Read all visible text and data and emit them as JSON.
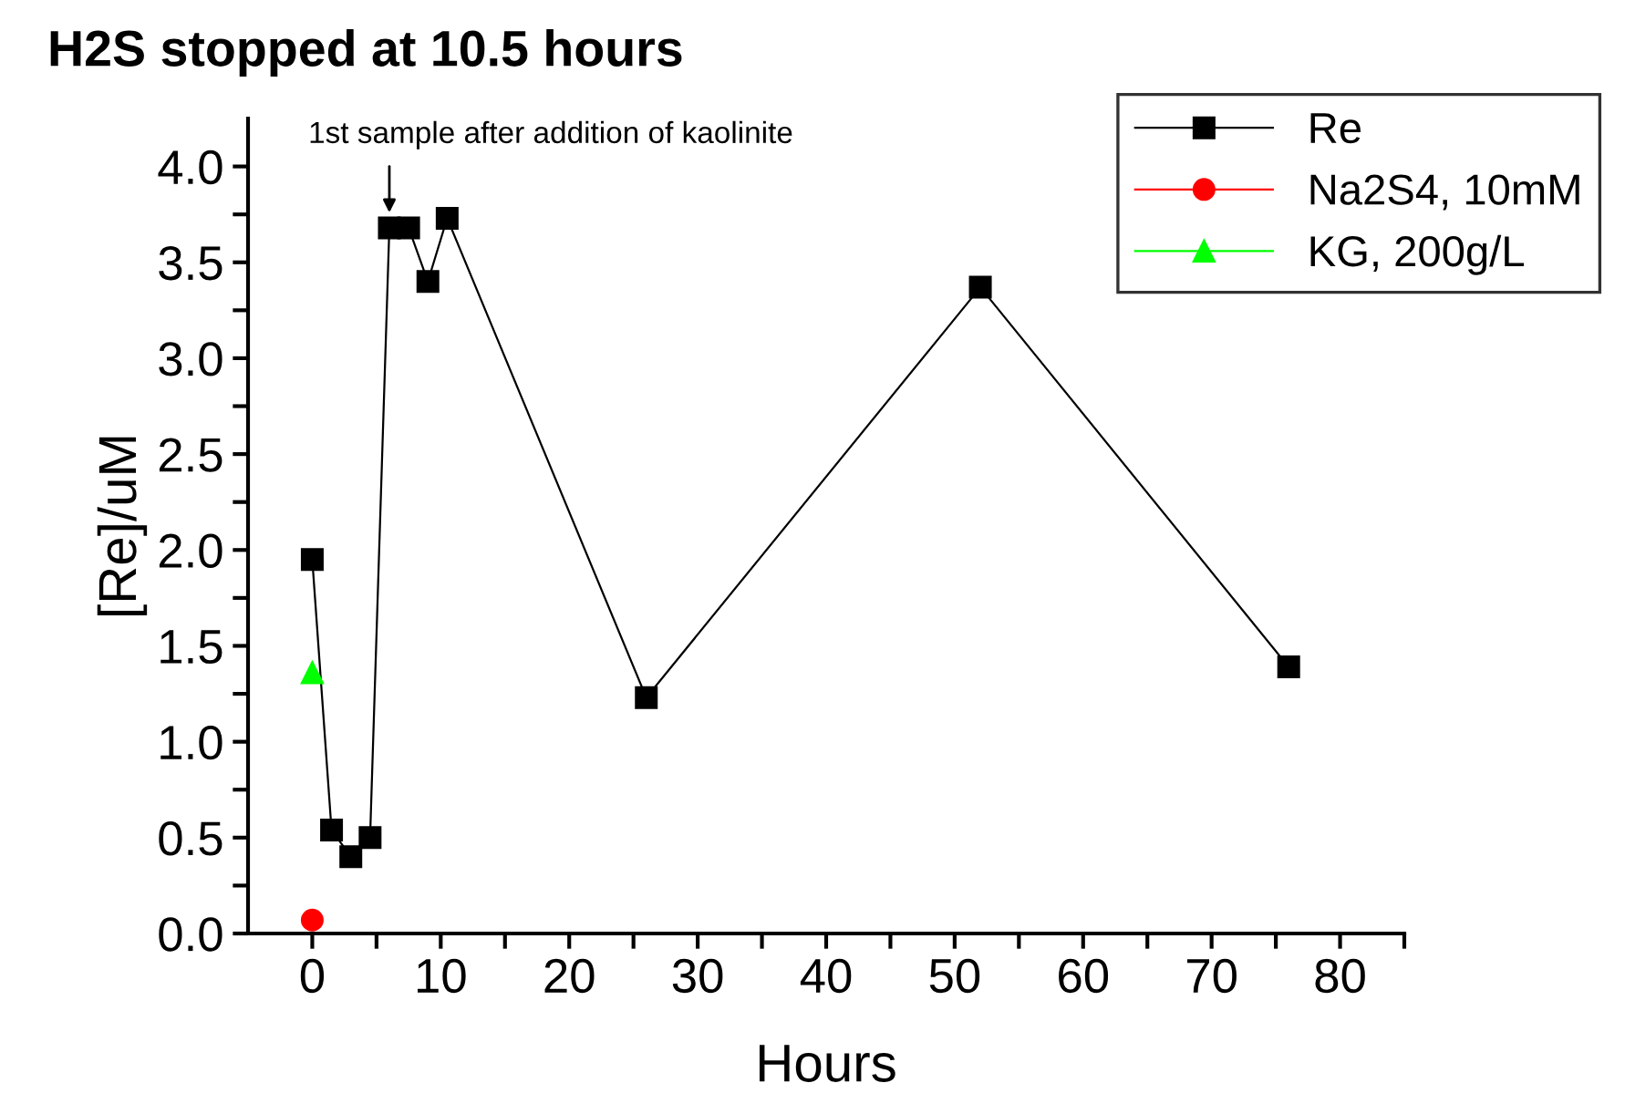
{
  "chart_data": {
    "type": "line",
    "title": "H2S stopped at 10.5 hours",
    "xlabel": "Hours",
    "ylabel": "[Re]/uM",
    "xlim": [
      -5,
      85
    ],
    "ylim": [
      0,
      4.25
    ],
    "xticks": [
      0,
      {
        "value": 5,
        "label": null
      },
      10,
      {
        "value": 15,
        "label": null
      },
      20,
      {
        "value": 25,
        "label": null
      },
      30,
      {
        "value": 35,
        "label": null
      },
      40,
      {
        "value": 45,
        "label": null
      },
      50,
      {
        "value": 55,
        "label": null
      },
      60,
      {
        "value": 65,
        "label": null
      },
      70,
      {
        "value": 75,
        "label": null
      },
      80,
      {
        "value": 85,
        "label": null
      }
    ],
    "yticks": [
      {
        "value": 0,
        "label": "0.0"
      },
      {
        "value": 0.25,
        "label": null
      },
      {
        "value": 0.5,
        "label": "0.5"
      },
      {
        "value": 0.75,
        "label": null
      },
      {
        "value": 1,
        "label": "1.0"
      },
      {
        "value": 1.25,
        "label": null
      },
      {
        "value": 1.5,
        "label": "1.5"
      },
      {
        "value": 1.75,
        "label": null
      },
      {
        "value": 2,
        "label": "2.0"
      },
      {
        "value": 2.25,
        "label": null
      },
      {
        "value": 2.5,
        "label": "2.5"
      },
      {
        "value": 2.75,
        "label": null
      },
      {
        "value": 3,
        "label": "3.0"
      },
      {
        "value": 3.25,
        "label": null
      },
      {
        "value": 3.5,
        "label": "3.5"
      },
      {
        "value": 3.75,
        "label": null
      },
      {
        "value": 4,
        "label": "4.0"
      }
    ],
    "series": [
      {
        "name": "Re",
        "color": "#000000",
        "marker": "square",
        "x": [
          0,
          1.5,
          3,
          4.5,
          6,
          7.5,
          9,
          10.5,
          26,
          52,
          76
        ],
        "values": [
          1.95,
          0.54,
          0.4,
          0.5,
          3.68,
          3.68,
          3.4,
          3.73,
          1.23,
          3.37,
          1.39
        ]
      },
      {
        "name": "Na2S4, 10mM",
        "color": "#ff0000",
        "marker": "circle",
        "x": [
          0
        ],
        "values": [
          0.07
        ]
      },
      {
        "name": "KG, 200g/L",
        "color": "#00ff00",
        "marker": "triangle",
        "x": [
          0
        ],
        "values": [
          1.36
        ]
      }
    ],
    "annotations": [
      {
        "text": "1st sample after addition of kaolinite",
        "x": 6,
        "y": 3.68
      }
    ],
    "legend": "top right",
    "grid": false
  }
}
